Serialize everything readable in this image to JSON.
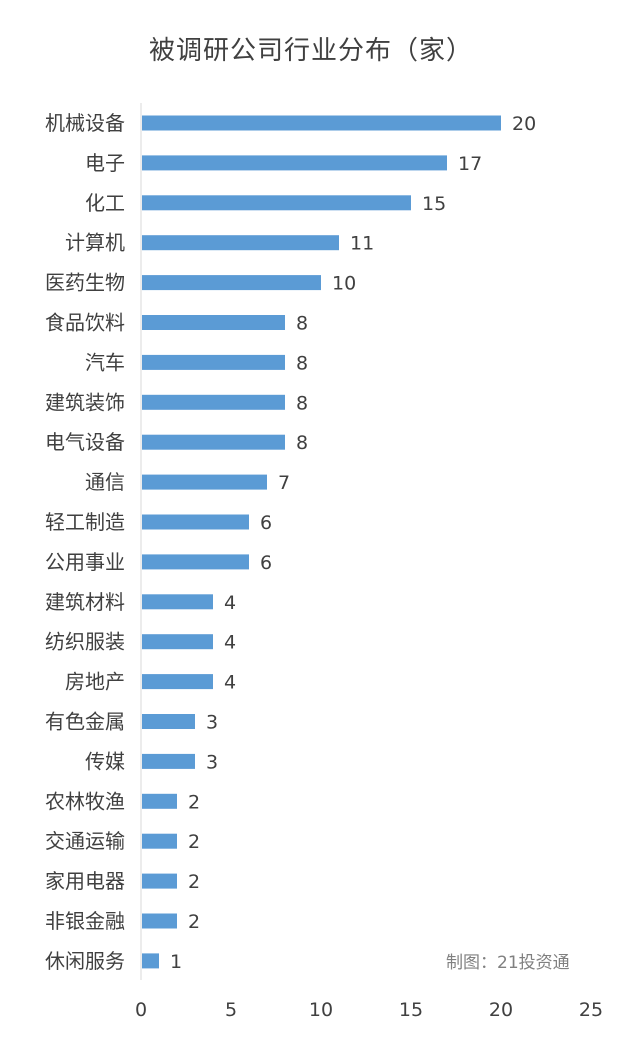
{
  "chart_data": {
    "type": "bar",
    "orientation": "horizontal",
    "title": "被调研公司行业分布（家）",
    "categories": [
      "机械设备",
      "电子",
      "化工",
      "计算机",
      "医药生物",
      "食品饮料",
      "汽车",
      "建筑装饰",
      "电气设备",
      "通信",
      "轻工制造",
      "公用事业",
      "建筑材料",
      "纺织服装",
      "房地产",
      "有色金属",
      "传媒",
      "农林牧渔",
      "交通运输",
      "家用电器",
      "非银金融",
      "休闲服务"
    ],
    "values": [
      20,
      17,
      15,
      11,
      10,
      8,
      8,
      8,
      8,
      7,
      6,
      6,
      4,
      4,
      4,
      3,
      3,
      2,
      2,
      2,
      2,
      1
    ],
    "x_ticks": [
      "0",
      "5",
      "10",
      "15",
      "20",
      "25"
    ],
    "xlim": [
      0,
      25
    ],
    "xlabel": "",
    "ylabel": "",
    "grid": false,
    "data_labels": true,
    "bar_color": "#5b9bd5",
    "axis_color": "#d9d9d9",
    "label_color": "#404040"
  },
  "source_note": "制图：21投资通"
}
